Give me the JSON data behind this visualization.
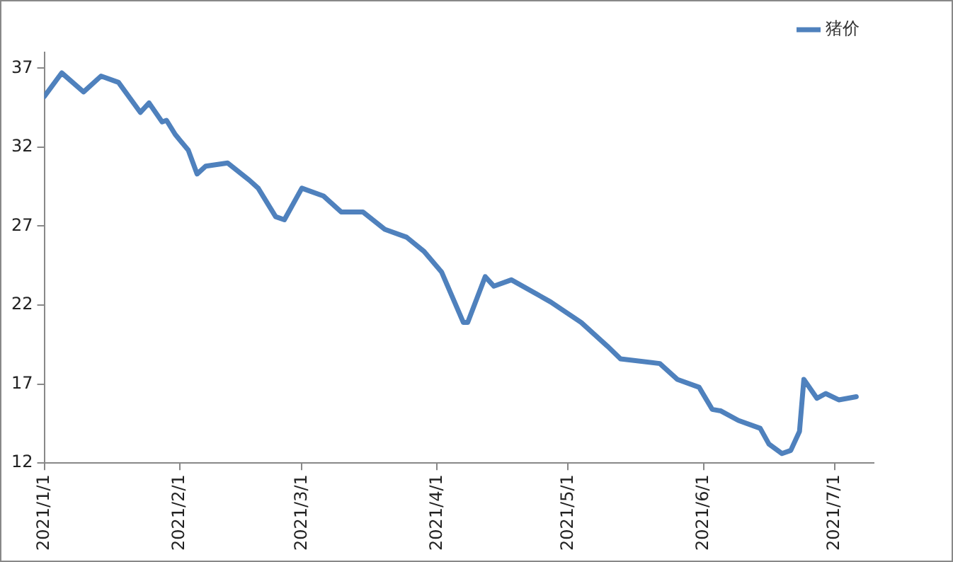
{
  "chart_data": {
    "type": "line",
    "x": [
      "2021-01-01",
      "2021-01-05",
      "2021-01-10",
      "2021-01-14",
      "2021-01-18",
      "2021-01-23",
      "2021-01-25",
      "2021-01-28",
      "2021-01-29",
      "2021-01-31",
      "2021-02-03",
      "2021-02-05",
      "2021-02-07",
      "2021-02-12",
      "2021-02-17",
      "2021-02-19",
      "2021-02-23",
      "2021-02-25",
      "2021-03-01",
      "2021-03-06",
      "2021-03-10",
      "2021-03-15",
      "2021-03-20",
      "2021-03-25",
      "2021-03-29",
      "2021-04-02",
      "2021-04-07",
      "2021-04-08",
      "2021-04-12",
      "2021-04-14",
      "2021-04-18",
      "2021-04-27",
      "2021-05-04",
      "2021-05-10",
      "2021-05-13",
      "2021-05-22",
      "2021-05-26",
      "2021-05-31",
      "2021-06-03",
      "2021-06-05",
      "2021-06-09",
      "2021-06-14",
      "2021-06-16",
      "2021-06-19",
      "2021-06-21",
      "2021-06-23",
      "2021-06-24",
      "2021-06-27",
      "2021-06-29",
      "2021-07-02",
      "2021-07-06"
    ],
    "series": [
      {
        "name": "猪价",
        "color": "#4f81bd",
        "values": [
          35.2,
          36.7,
          35.5,
          36.5,
          36.1,
          34.2,
          34.8,
          33.6,
          33.7,
          32.8,
          31.8,
          30.3,
          30.8,
          31.0,
          29.9,
          29.4,
          27.6,
          27.4,
          29.4,
          28.9,
          27.9,
          27.9,
          26.8,
          26.3,
          25.4,
          24.1,
          20.9,
          20.9,
          23.8,
          23.2,
          23.6,
          22.2,
          20.9,
          19.4,
          18.6,
          18.3,
          17.3,
          16.8,
          15.4,
          15.3,
          14.7,
          14.2,
          13.2,
          12.6,
          12.8,
          14.0,
          17.3,
          16.1,
          16.4,
          16.0,
          16.2
        ]
      }
    ],
    "ylim": [
      12,
      38
    ],
    "yticks": [
      12,
      17,
      22,
      27,
      32,
      37
    ],
    "xlim": [
      "2021-01-01",
      "2021-07-10"
    ],
    "xticks": [
      {
        "value": "2021-01-01",
        "label": "2021/1/1"
      },
      {
        "value": "2021-02-01",
        "label": "2021/2/1"
      },
      {
        "value": "2021-03-01",
        "label": "2021/3/1"
      },
      {
        "value": "2021-04-01",
        "label": "2021/4/1"
      },
      {
        "value": "2021-05-01",
        "label": "2021/5/1"
      },
      {
        "value": "2021-06-01",
        "label": "2021/6/1"
      },
      {
        "value": "2021-07-01",
        "label": "2021/7/1"
      }
    ],
    "grid": false,
    "legend": "top right",
    "marker": "none",
    "line_style": "solid"
  }
}
